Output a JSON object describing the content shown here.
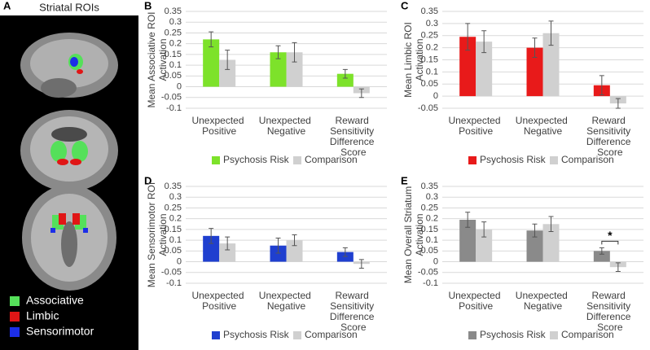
{
  "panel_a": {
    "label": "A",
    "title": "Striatal ROIs",
    "legend": [
      {
        "label": "Associative",
        "color": "#55e05a"
      },
      {
        "label": "Limbic",
        "color": "#e01616"
      },
      {
        "label": "Sensorimotor",
        "color": "#1c2ee8"
      }
    ]
  },
  "chart_data": [
    {
      "type": "bar",
      "panel": "B",
      "ylabel": [
        "Mean Associative ROI",
        "Activation"
      ],
      "categories": [
        "Unexpected Positive",
        "Unexpected Negative",
        "Reward Sensitivity Difference Score"
      ],
      "series": [
        {
          "name": "Psychosis Risk",
          "color": "#7de22a",
          "values": [
            0.22,
            0.16,
            0.06
          ],
          "errors": [
            0.035,
            0.03,
            0.02
          ]
        },
        {
          "name": "Comparison",
          "color": "#d0d0d0",
          "values": [
            0.125,
            0.16,
            -0.03
          ],
          "errors": [
            0.045,
            0.045,
            0.02
          ]
        }
      ],
      "ylim": [
        -0.1,
        0.35
      ],
      "yticks": [
        -0.1,
        -0.05,
        0,
        0.05,
        0.1,
        0.15,
        0.2,
        0.25,
        0.3,
        0.35
      ],
      "grid": true
    },
    {
      "type": "bar",
      "panel": "C",
      "ylabel": [
        "Mean Limbic ROI",
        "Activation"
      ],
      "categories": [
        "Unexpected Positive",
        "Unexpected Negative",
        "Reward Sensitivity Difference Score"
      ],
      "series": [
        {
          "name": "Psychosis Risk",
          "color": "#e81a1a",
          "values": [
            0.245,
            0.2,
            0.045
          ],
          "errors": [
            0.055,
            0.04,
            0.04
          ]
        },
        {
          "name": "Comparison",
          "color": "#d0d0d0",
          "values": [
            0.225,
            0.26,
            -0.03
          ],
          "errors": [
            0.045,
            0.05,
            0.02
          ]
        }
      ],
      "ylim": [
        -0.05,
        0.35
      ],
      "yticks": [
        -0.05,
        0,
        0.05,
        0.1,
        0.15,
        0.2,
        0.25,
        0.3,
        0.35
      ],
      "grid": true
    },
    {
      "type": "bar",
      "panel": "D",
      "ylabel": [
        "Mean Sensorimotor ROI",
        "Activation"
      ],
      "categories": [
        "Unexpected Positive",
        "Unexpected Negative",
        "Reward Sensitivity Difference Score"
      ],
      "series": [
        {
          "name": "Psychosis Risk",
          "color": "#1f3fcf",
          "values": [
            0.12,
            0.075,
            0.045
          ],
          "errors": [
            0.035,
            0.035,
            0.02
          ]
        },
        {
          "name": "Comparison",
          "color": "#d0d0d0",
          "values": [
            0.085,
            0.1,
            -0.01
          ],
          "errors": [
            0.03,
            0.025,
            0.02
          ]
        }
      ],
      "ylim": [
        -0.1,
        0.35
      ],
      "yticks": [
        -0.1,
        -0.05,
        0,
        0.05,
        0.1,
        0.15,
        0.2,
        0.25,
        0.3,
        0.35
      ],
      "grid": true
    },
    {
      "type": "bar",
      "panel": "E",
      "ylabel": [
        "Mean Overall Striatum",
        "Activation"
      ],
      "categories": [
        "Unexpected Positive",
        "Unexpected Negative",
        "Reward Sensitivity Difference Score"
      ],
      "series": [
        {
          "name": "Psychosis Risk",
          "color": "#8a8a8a",
          "values": [
            0.195,
            0.145,
            0.05
          ],
          "errors": [
            0.035,
            0.03,
            0.015
          ]
        },
        {
          "name": "Comparison",
          "color": "#d0d0d0",
          "values": [
            0.15,
            0.175,
            -0.025
          ],
          "errors": [
            0.035,
            0.035,
            0.02
          ]
        }
      ],
      "ylim": [
        -0.1,
        0.35
      ],
      "yticks": [
        -0.1,
        -0.05,
        0,
        0.05,
        0.1,
        0.15,
        0.2,
        0.25,
        0.3,
        0.35
      ],
      "grid": true,
      "annotation": "*"
    }
  ]
}
